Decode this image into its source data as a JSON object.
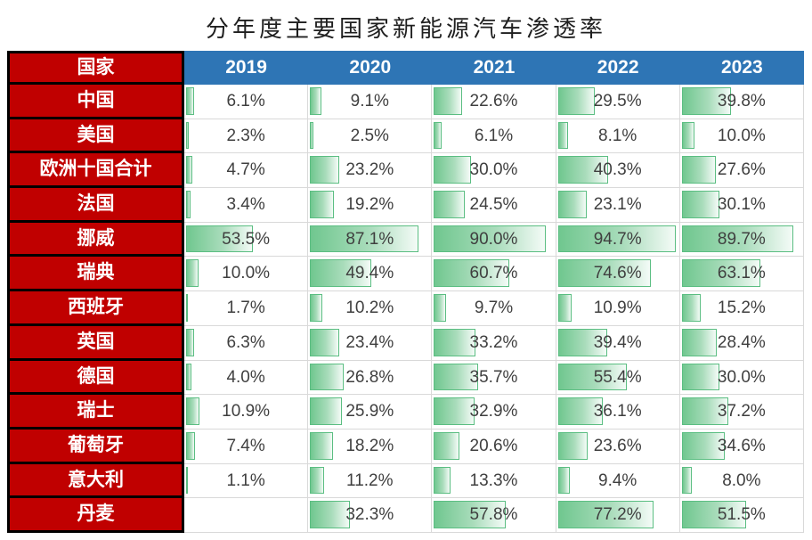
{
  "colors": {
    "header_fill": "#2E75B5",
    "header_text": "#FFFFFF",
    "row_label_fill": "#C00000",
    "row_label_text": "#FFFFFF",
    "border_black": "#000000",
    "gridline": "#D9D9D9",
    "bar_border": "#5BBE82",
    "bar_fill_start": "#70C78F",
    "bar_fill_mid": "#A9DCBB",
    "bar_fill_end": "#F4FBF7",
    "value_text": "#3F3F3F",
    "title_text": "#1F1F1F"
  },
  "chart_data": {
    "type": "table",
    "visual": "table-with-gradient-data-bars",
    "title": "分年度主要国家新能源汽车渗透率",
    "row_header_label": "国家",
    "categories": [
      "2019",
      "2020",
      "2021",
      "2022",
      "2023"
    ],
    "value_suffix": "%",
    "value_decimals": 1,
    "bar_axis_min": 0,
    "bar_axis_max": 94.7,
    "legend": "none",
    "series": [
      {
        "name": "中国",
        "values": [
          6.1,
          9.1,
          22.6,
          29.5,
          39.8
        ]
      },
      {
        "name": "美国",
        "values": [
          2.3,
          2.5,
          6.1,
          8.1,
          10.0
        ]
      },
      {
        "name": "欧洲十国合计",
        "values": [
          4.7,
          23.2,
          30.0,
          40.3,
          27.6
        ]
      },
      {
        "name": "法国",
        "values": [
          3.4,
          19.2,
          24.5,
          23.1,
          30.1
        ]
      },
      {
        "name": "挪威",
        "values": [
          53.5,
          87.1,
          90.0,
          94.7,
          89.7
        ]
      },
      {
        "name": "瑞典",
        "values": [
          10.0,
          49.4,
          60.7,
          74.6,
          63.1
        ]
      },
      {
        "name": "西班牙",
        "values": [
          1.7,
          10.2,
          9.7,
          10.9,
          15.2
        ]
      },
      {
        "name": "英国",
        "values": [
          6.3,
          23.4,
          33.2,
          39.4,
          28.4
        ]
      },
      {
        "name": "德国",
        "values": [
          4.0,
          26.8,
          35.7,
          55.4,
          30.0
        ]
      },
      {
        "name": "瑞士",
        "values": [
          10.9,
          25.9,
          32.9,
          36.1,
          37.2
        ]
      },
      {
        "name": "葡萄牙",
        "values": [
          7.4,
          18.2,
          20.6,
          23.6,
          34.6
        ]
      },
      {
        "name": "意大利",
        "values": [
          1.1,
          11.2,
          13.3,
          9.4,
          8.0
        ]
      },
      {
        "name": "丹麦",
        "values": [
          null,
          32.3,
          57.8,
          77.2,
          51.5
        ]
      }
    ]
  }
}
